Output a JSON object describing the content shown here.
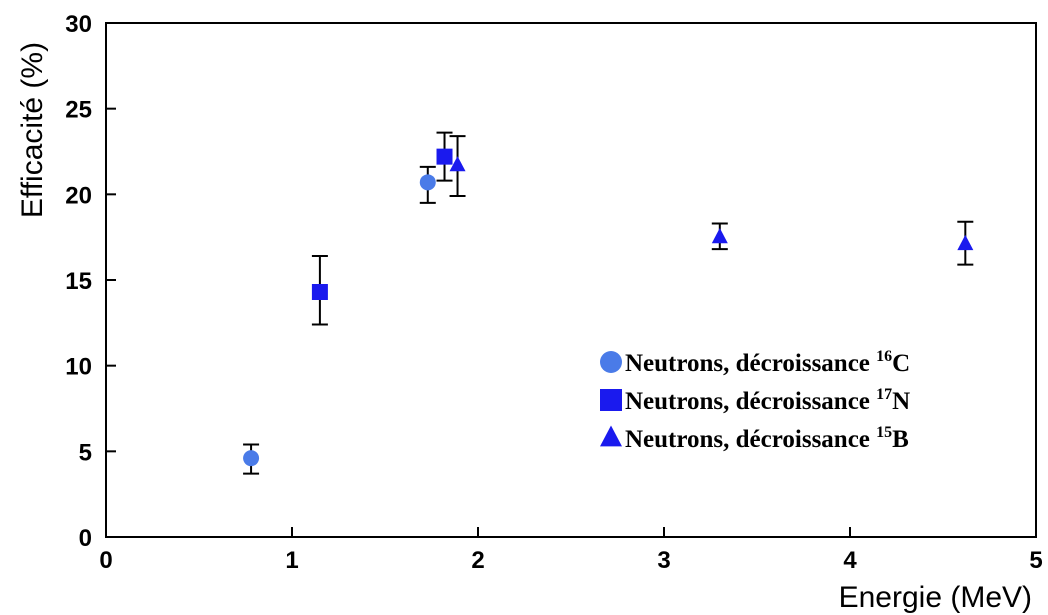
{
  "chart_data": {
    "type": "scatter",
    "title": "",
    "xlabel": "Energie (MeV)",
    "ylabel": "Efficacité (%)",
    "xlim": [
      0,
      5
    ],
    "ylim": [
      0,
      30
    ],
    "xticks": [
      "0",
      "1",
      "2",
      "3",
      "4",
      "5"
    ],
    "yticks": [
      "0",
      "5",
      "10",
      "15",
      "20",
      "25",
      "30"
    ],
    "grid": false,
    "legend_position": "bottom-right",
    "series": [
      {
        "name": "Neutrons, décroissance 16C",
        "label_prefix": "Neutrons, décroissance ",
        "label_sup": "16",
        "label_suffix": "C",
        "marker": "circle",
        "color": "#4a7be8",
        "points": [
          {
            "x": 0.78,
            "y": 4.6,
            "err_low": 3.7,
            "err_high": 5.4
          },
          {
            "x": 1.73,
            "y": 20.7,
            "err_low": 19.5,
            "err_high": 21.6
          }
        ]
      },
      {
        "name": "Neutrons, décroissance 17N",
        "label_prefix": "Neutrons, décroissance ",
        "label_sup": "17",
        "label_suffix": "N",
        "marker": "square",
        "color": "#1a1aee",
        "points": [
          {
            "x": 1.15,
            "y": 14.3,
            "err_low": 12.4,
            "err_high": 16.4
          },
          {
            "x": 1.82,
            "y": 22.2,
            "err_low": 20.8,
            "err_high": 23.6
          }
        ]
      },
      {
        "name": "Neutrons, décroissance 15B",
        "label_prefix": "Neutrons, décroissance ",
        "label_sup": "15",
        "label_suffix": "B",
        "marker": "triangle",
        "color": "#1a1aee",
        "points": [
          {
            "x": 1.89,
            "y": 21.7,
            "err_low": 19.9,
            "err_high": 23.4
          },
          {
            "x": 3.3,
            "y": 17.5,
            "err_low": 16.8,
            "err_high": 18.3
          },
          {
            "x": 4.62,
            "y": 17.1,
            "err_low": 15.9,
            "err_high": 18.4
          }
        ]
      }
    ]
  }
}
